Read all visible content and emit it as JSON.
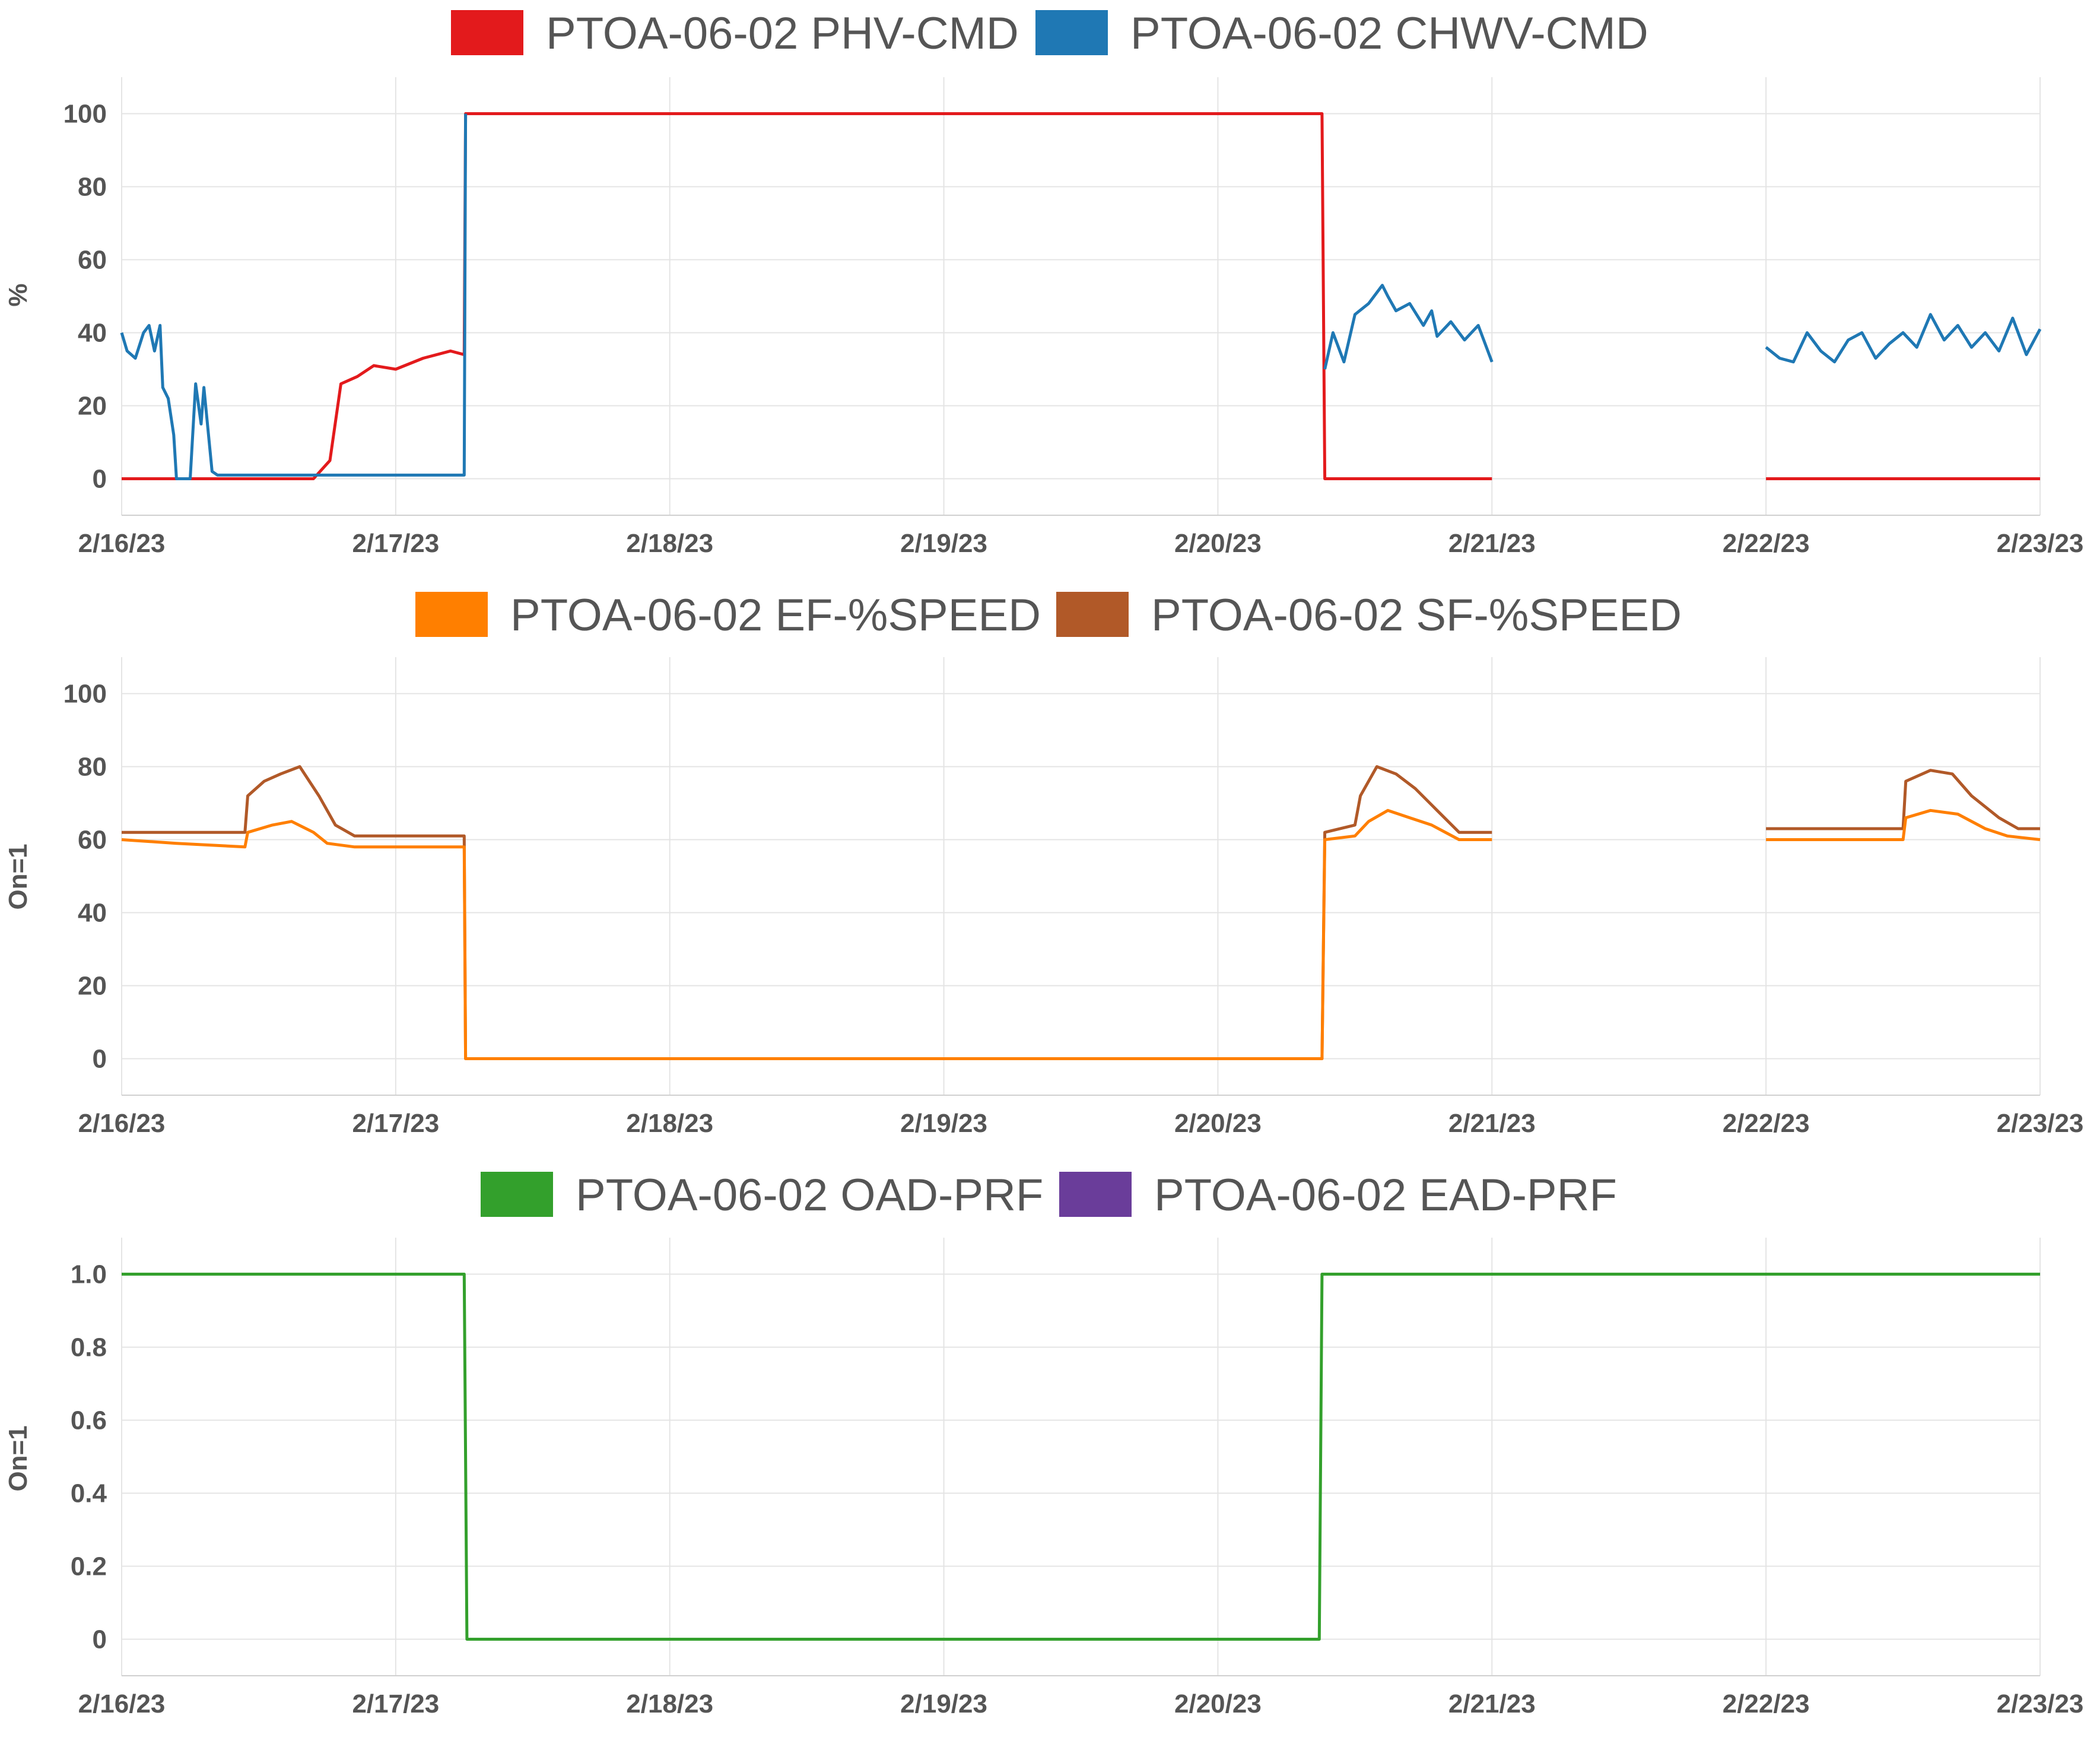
{
  "chart_data": [
    {
      "type": "line",
      "ylabel": "%",
      "ylim": [
        -10,
        110
      ],
      "yticks": [
        0,
        20,
        40,
        60,
        80,
        100
      ],
      "ytick_labels": [
        "0",
        "20",
        "40",
        "60",
        "80",
        "100"
      ],
      "x_range_days": [
        0,
        7
      ],
      "xticks": [
        0,
        1,
        2,
        3,
        4,
        5,
        6,
        7
      ],
      "xtick_labels": [
        "2/16/23",
        "2/17/23",
        "2/18/23",
        "2/19/23",
        "2/20/23",
        "2/21/23",
        "2/22/23",
        "2/23/23"
      ],
      "legend": [
        {
          "name": "PTOA-06-02 PHV-CMD",
          "color": "#e31a1c"
        },
        {
          "name": "PTOA-06-02 CHWV-CMD",
          "color": "#1f78b4"
        }
      ],
      "series": [
        {
          "name": "PTOA-06-02 PHV-CMD",
          "color": "#e31a1c",
          "segments": [
            [
              [
                0,
                0
              ],
              [
                0.2,
                0
              ],
              [
                0.5,
                0
              ],
              [
                0.7,
                0
              ],
              [
                0.76,
                5
              ],
              [
                0.8,
                26
              ],
              [
                0.86,
                28
              ],
              [
                0.92,
                31
              ],
              [
                1.0,
                30
              ],
              [
                1.1,
                33
              ],
              [
                1.2,
                35
              ],
              [
                1.25,
                34
              ],
              [
                1.255,
                100
              ],
              [
                4.38,
                100
              ],
              [
                4.39,
                0
              ],
              [
                5.0,
                0
              ]
            ],
            [
              [
                6.0,
                0
              ],
              [
                7.0,
                0
              ]
            ]
          ]
        },
        {
          "name": "PTOA-06-02 CHWV-CMD",
          "color": "#1f78b4",
          "segments": [
            [
              [
                0,
                40
              ],
              [
                0.02,
                35
              ],
              [
                0.05,
                33
              ],
              [
                0.08,
                40
              ],
              [
                0.1,
                42
              ],
              [
                0.12,
                35
              ],
              [
                0.14,
                42
              ],
              [
                0.15,
                25
              ],
              [
                0.17,
                22
              ],
              [
                0.19,
                12
              ],
              [
                0.2,
                0
              ],
              [
                0.25,
                0
              ],
              [
                0.27,
                26
              ],
              [
                0.29,
                15
              ],
              [
                0.3,
                25
              ],
              [
                0.33,
                2
              ],
              [
                0.35,
                1
              ],
              [
                1.0,
                1
              ],
              [
                1.25,
                1
              ],
              [
                1.255,
                100
              ]
            ],
            [
              [
                4.39,
                30
              ],
              [
                4.42,
                40
              ],
              [
                4.46,
                32
              ],
              [
                4.5,
                45
              ],
              [
                4.55,
                48
              ],
              [
                4.6,
                53
              ],
              [
                4.62,
                50
              ],
              [
                4.65,
                46
              ],
              [
                4.7,
                48
              ],
              [
                4.75,
                42
              ],
              [
                4.78,
                46
              ],
              [
                4.8,
                39
              ],
              [
                4.85,
                43
              ],
              [
                4.9,
                38
              ],
              [
                4.95,
                42
              ],
              [
                5.0,
                32
              ]
            ],
            [
              [
                6.0,
                36
              ],
              [
                6.05,
                33
              ],
              [
                6.1,
                32
              ],
              [
                6.15,
                40
              ],
              [
                6.2,
                35
              ],
              [
                6.25,
                32
              ],
              [
                6.3,
                38
              ],
              [
                6.35,
                40
              ],
              [
                6.4,
                33
              ],
              [
                6.45,
                37
              ],
              [
                6.5,
                40
              ],
              [
                6.55,
                36
              ],
              [
                6.6,
                45
              ],
              [
                6.65,
                38
              ],
              [
                6.7,
                42
              ],
              [
                6.75,
                36
              ],
              [
                6.8,
                40
              ],
              [
                6.85,
                35
              ],
              [
                6.9,
                44
              ],
              [
                6.95,
                34
              ],
              [
                7.0,
                41
              ]
            ]
          ]
        }
      ]
    },
    {
      "type": "line",
      "ylabel": "On=1",
      "ylim": [
        -10,
        110
      ],
      "yticks": [
        0,
        20,
        40,
        60,
        80,
        100
      ],
      "ytick_labels": [
        "0",
        "20",
        "40",
        "60",
        "80",
        "100"
      ],
      "x_range_days": [
        0,
        7
      ],
      "xticks": [
        0,
        1,
        2,
        3,
        4,
        5,
        6,
        7
      ],
      "xtick_labels": [
        "2/16/23",
        "2/17/23",
        "2/18/23",
        "2/19/23",
        "2/20/23",
        "2/21/23",
        "2/22/23",
        "2/23/23"
      ],
      "legend": [
        {
          "name": "PTOA-06-02 EF-%SPEED",
          "color": "#ff7f00"
        },
        {
          "name": "PTOA-06-02 SF-%SPEED",
          "color": "#b15928"
        }
      ],
      "series": [
        {
          "name": "PTOA-06-02 SF-%SPEED",
          "color": "#b15928",
          "segments": [
            [
              [
                0,
                62
              ],
              [
                0.2,
                62
              ],
              [
                0.45,
                62
              ],
              [
                0.46,
                72
              ],
              [
                0.52,
                76
              ],
              [
                0.58,
                78
              ],
              [
                0.65,
                80
              ],
              [
                0.72,
                72
              ],
              [
                0.78,
                64
              ],
              [
                0.85,
                61
              ],
              [
                1.25,
                61
              ],
              [
                1.255,
                0
              ],
              [
                4.38,
                0
              ],
              [
                4.39,
                62
              ],
              [
                4.5,
                64
              ],
              [
                4.52,
                72
              ],
              [
                4.58,
                80
              ],
              [
                4.65,
                78
              ],
              [
                4.72,
                74
              ],
              [
                4.8,
                68
              ],
              [
                4.88,
                62
              ],
              [
                5.0,
                62
              ]
            ],
            [
              [
                6.0,
                63
              ],
              [
                6.3,
                63
              ],
              [
                6.5,
                63
              ],
              [
                6.51,
                76
              ],
              [
                6.6,
                79
              ],
              [
                6.68,
                78
              ],
              [
                6.75,
                72
              ],
              [
                6.85,
                66
              ],
              [
                6.92,
                63
              ],
              [
                7.0,
                63
              ]
            ]
          ]
        },
        {
          "name": "PTOA-06-02 EF-%SPEED",
          "color": "#ff7f00",
          "segments": [
            [
              [
                0,
                60
              ],
              [
                0.2,
                59
              ],
              [
                0.45,
                58
              ],
              [
                0.46,
                62
              ],
              [
                0.55,
                64
              ],
              [
                0.62,
                65
              ],
              [
                0.7,
                62
              ],
              [
                0.75,
                59
              ],
              [
                0.85,
                58
              ],
              [
                1.25,
                58
              ],
              [
                1.255,
                0
              ],
              [
                4.38,
                0
              ],
              [
                4.39,
                60
              ],
              [
                4.5,
                61
              ],
              [
                4.55,
                65
              ],
              [
                4.62,
                68
              ],
              [
                4.7,
                66
              ],
              [
                4.78,
                64
              ],
              [
                4.88,
                60
              ],
              [
                5.0,
                60
              ]
            ],
            [
              [
                6.0,
                60
              ],
              [
                6.3,
                60
              ],
              [
                6.5,
                60
              ],
              [
                6.51,
                66
              ],
              [
                6.6,
                68
              ],
              [
                6.7,
                67
              ],
              [
                6.8,
                63
              ],
              [
                6.88,
                61
              ],
              [
                7.0,
                60
              ]
            ]
          ]
        }
      ]
    },
    {
      "type": "line",
      "ylabel": "On=1",
      "ylim": [
        -0.1,
        1.1
      ],
      "yticks": [
        0,
        0.2,
        0.4,
        0.6,
        0.8,
        1.0
      ],
      "ytick_labels": [
        "0",
        "0.2",
        "0.4",
        "0.6",
        "0.8",
        "1.0"
      ],
      "x_range_days": [
        0,
        7
      ],
      "xticks": [
        0,
        1,
        2,
        3,
        4,
        5,
        6,
        7
      ],
      "xtick_labels": [
        "2/16/23",
        "2/17/23",
        "2/18/23",
        "2/19/23",
        "2/20/23",
        "2/21/23",
        "2/22/23",
        "2/23/23"
      ],
      "legend": [
        {
          "name": "PTOA-06-02 OAD-PRF",
          "color": "#33a02c"
        },
        {
          "name": "PTOA-06-02 EAD-PRF",
          "color": "#6a3d9a"
        }
      ],
      "series": [
        {
          "name": "PTOA-06-02 OAD-PRF",
          "color": "#33a02c",
          "segments": [
            [
              [
                0,
                1
              ],
              [
                1.25,
                1
              ],
              [
                1.26,
                0
              ],
              [
                4.37,
                0
              ],
              [
                4.38,
                1
              ],
              [
                7.0,
                1
              ]
            ]
          ]
        },
        {
          "name": "PTOA-06-02 EAD-PRF",
          "color": "#6a3d9a",
          "segments": []
        }
      ]
    }
  ]
}
